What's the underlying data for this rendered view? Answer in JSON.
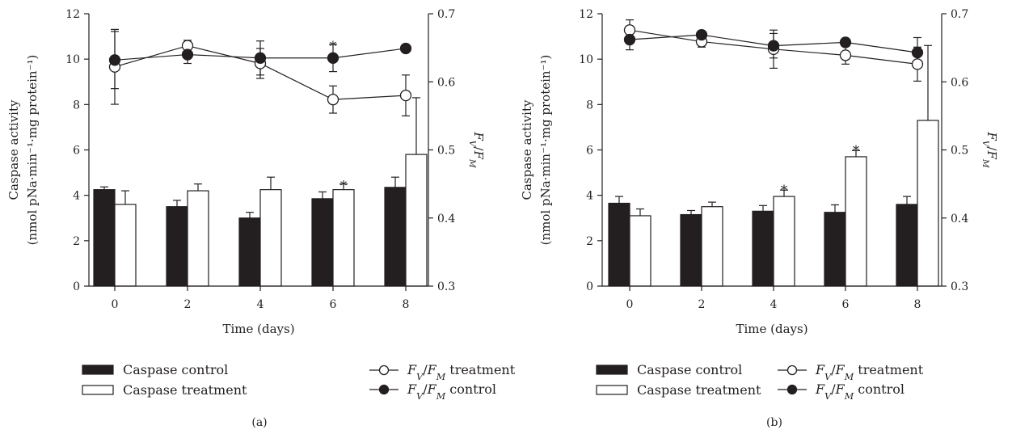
{
  "chart_data": [
    {
      "type": "bar",
      "panel_label": "(a)",
      "xlabel": "Time (days)",
      "ylabel_line1": "Caspase activity",
      "ylabel_line2": "(nmol pNa·min⁻¹·mg protein⁻¹)",
      "y2label": "FV/FM",
      "categories": [
        "0",
        "2",
        "4",
        "6",
        "8"
      ],
      "x": [
        0,
        2,
        4,
        6,
        8
      ],
      "ylim": [
        0,
        12
      ],
      "yticks": [
        0,
        2,
        4,
        6,
        8,
        10,
        12
      ],
      "y2lim": [
        0.3,
        0.7
      ],
      "y2ticks": [
        "0.3",
        "0.4",
        "0.5",
        "0.6",
        "0.7"
      ],
      "bar_series": [
        {
          "name": "Caspase control",
          "fill": "#231f20",
          "values": [
            4.25,
            3.5,
            3.0,
            3.85,
            4.35
          ],
          "err": [
            0.12,
            0.28,
            0.25,
            0.3,
            0.45
          ]
        },
        {
          "name": "Caspase treatment",
          "fill": "#ffffff",
          "values": [
            3.6,
            4.2,
            4.25,
            4.25,
            5.8
          ],
          "err": [
            0.6,
            0.3,
            0.55,
            0.25,
            2.5
          ]
        }
      ],
      "bar_stars": [
        {
          "x": 6,
          "series": 1,
          "y": 4.5,
          "text": "*"
        }
      ],
      "line_series": [
        {
          "name": "FV/FM treatment",
          "marker": "open",
          "values": [
            0.622,
            0.653,
            0.627,
            0.574,
            0.58
          ],
          "err": [
            0.055,
            0.008,
            0.022,
            0.02,
            0.03
          ]
        },
        {
          "name": "FV/FM control",
          "marker": "filled",
          "values": [
            0.632,
            0.64,
            0.635,
            0.635,
            0.649
          ],
          "err": [
            0.042,
            0.013,
            0.025,
            0.02,
            0.0
          ]
        }
      ],
      "line_stars": [
        {
          "x": 6,
          "series": 1,
          "y": 0.655,
          "text": "*"
        }
      ],
      "legend": {
        "caspase_control": "Caspase control",
        "caspase_treatment": "Caspase treatment",
        "fvfm_treatment_suffix": "treatment",
        "fvfm_control_suffix": "control"
      }
    },
    {
      "type": "bar",
      "panel_label": "(b)",
      "xlabel": "Time (days)",
      "ylabel_line1": "Caspase activity",
      "ylabel_line2": "(nmol pNa·min⁻¹·mg protein⁻¹)",
      "y2label": "FV/FM",
      "categories": [
        "0",
        "2",
        "4",
        "6",
        "8"
      ],
      "x": [
        0,
        2,
        4,
        6,
        8
      ],
      "ylim": [
        0,
        12
      ],
      "yticks": [
        0,
        2,
        4,
        6,
        8,
        10,
        12
      ],
      "y2lim": [
        0.3,
        0.7
      ],
      "y2ticks": [
        "0.3",
        "0.4",
        "0.5",
        "0.6",
        "0.7"
      ],
      "bar_series": [
        {
          "name": "Caspase control",
          "fill": "#231f20",
          "values": [
            3.65,
            3.15,
            3.3,
            3.25,
            3.6
          ],
          "err": [
            0.3,
            0.18,
            0.25,
            0.33,
            0.35
          ]
        },
        {
          "name": "Caspase treatment",
          "fill": "#ffffff",
          "values": [
            3.1,
            3.5,
            3.95,
            5.7,
            7.3
          ],
          "err": [
            0.3,
            0.2,
            0.28,
            0.27,
            3.3
          ]
        }
      ],
      "bar_stars": [
        {
          "x": 4,
          "series": 1,
          "y": 4.3,
          "text": "*"
        },
        {
          "x": 6,
          "series": 1,
          "y": 6.05,
          "text": "*"
        }
      ],
      "line_series": [
        {
          "name": "FV/FM treatment",
          "marker": "open",
          "values": [
            0.676,
            0.659,
            0.648,
            0.639,
            0.626
          ],
          "err": [
            0.015,
            0.008,
            0.028,
            0.013,
            0.025
          ]
        },
        {
          "name": "FV/FM control",
          "marker": "filled",
          "values": [
            0.662,
            0.669,
            0.653,
            0.658,
            0.643
          ],
          "err": [
            0.015,
            0.0,
            0.018,
            0.0,
            0.022
          ]
        }
      ],
      "line_stars": [],
      "legend": {
        "caspase_control": "Caspase control",
        "caspase_treatment": "Caspase treatment",
        "fvfm_treatment_suffix": "treatment",
        "fvfm_control_suffix": "control"
      }
    }
  ]
}
